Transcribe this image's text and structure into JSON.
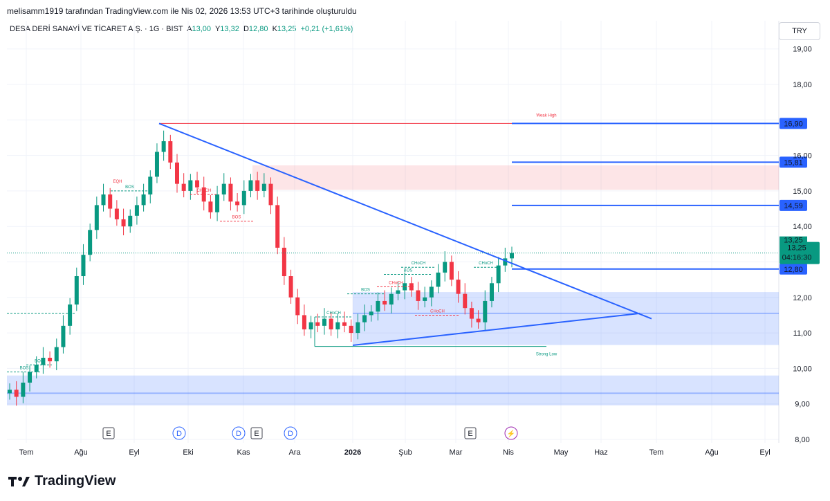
{
  "header": {
    "attribution": "melisamm1919 tarafından TradingView.com ile Nis 02, 2026 13:53 UTC+3 tarihinde oluşturuldu"
  },
  "symbol": {
    "name": "DESA DERİ SANAYİ VE TİCARET A.Ş. · 1G · BIST",
    "o_label": "A",
    "o_value": "13,00",
    "h_label": "Y",
    "h_value": "13,32",
    "l_label": "D",
    "l_value": "12,80",
    "c_label": "K",
    "c_value": "13,25",
    "change": "+0,21 (+1,61%)"
  },
  "currency": "TRY",
  "brand": {
    "name": "TradingView",
    "logo": "tradingview-logo"
  },
  "colors": {
    "up": "#089981",
    "down": "#f23645",
    "trend": "#2962ff",
    "zone_blue": "#2962ff",
    "zone_red": "#f23645"
  },
  "chart_data": {
    "type": "candlestick",
    "y_axis": {
      "min": 8.0,
      "max": 19.0,
      "ticks": [
        "8,00",
        "9,00",
        "10,00",
        "11,00",
        "12,00",
        "13,00",
        "14,00",
        "15,00",
        "16,00",
        "17,00",
        "18,00",
        "19,00"
      ]
    },
    "x_axis": {
      "labels": [
        "Tem",
        "Ağu",
        "Eyl",
        "Eki",
        "Kas",
        "Ara",
        "2026",
        "Şub",
        "Mar",
        "Nis",
        "May",
        "Haz",
        "Tem",
        "Ağu",
        "Eyl"
      ]
    },
    "price_series_close": [
      9.4,
      9.2,
      9.6,
      9.9,
      10.1,
      10.3,
      10.2,
      10.6,
      11.2,
      11.8,
      12.6,
      13.2,
      13.9,
      14.6,
      14.9,
      14.5,
      14.2,
      14.0,
      14.3,
      14.6,
      14.9,
      15.4,
      16.1,
      16.4,
      15.8,
      15.2,
      15.0,
      15.3,
      15.1,
      14.7,
      14.4,
      14.9,
      15.2,
      14.7,
      14.6,
      15.0,
      15.3,
      15.0,
      15.2,
      14.6,
      13.4,
      12.6,
      12.0,
      11.5,
      11.1,
      11.3,
      11.2,
      11.4,
      11.1,
      11.3,
      11.2,
      11.0,
      11.3,
      11.5,
      11.6,
      11.9,
      11.8,
      12.1,
      12.2,
      12.4,
      12.2,
      11.9,
      12.0,
      12.3,
      12.7,
      13.0,
      12.5,
      12.1,
      11.7,
      11.4,
      11.3,
      11.9,
      12.4,
      12.9,
      13.1,
      13.25
    ],
    "labels": [
      "Weak High",
      "Strong Low",
      "EQH",
      "BOS",
      "CHoCH"
    ],
    "levels": [
      {
        "value": 16.9,
        "label": "16,90"
      },
      {
        "value": 15.81,
        "label": "15,81"
      },
      {
        "value": 14.59,
        "label": "14,59"
      },
      {
        "value": 12.8,
        "label": "12,80"
      }
    ],
    "last_price": {
      "value": 13.25,
      "label": "13,25",
      "countdown": "04:16:30"
    },
    "zones": [
      {
        "type": "supply",
        "from": 15.03,
        "to": 15.72
      },
      {
        "type": "demand",
        "from": 10.66,
        "to": 12.15
      },
      {
        "type": "demand",
        "from": 8.96,
        "to": 9.8
      }
    ],
    "trendlines": [
      {
        "from_price": 16.9,
        "to_price": 11.4
      },
      {
        "from_price": 10.65,
        "to_price": 11.55
      }
    ],
    "event_markers": [
      "E",
      "D",
      "D",
      "E",
      "D",
      "E",
      "⚡"
    ],
    "legend": "none",
    "grid": true
  }
}
